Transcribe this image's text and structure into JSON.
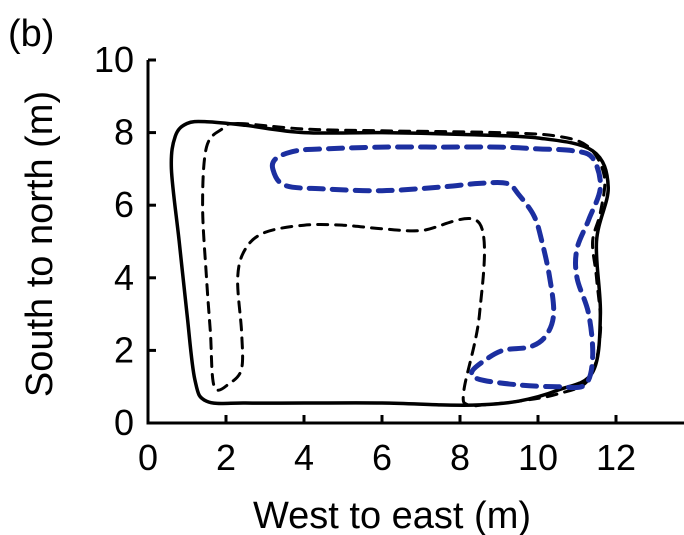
{
  "panel_label": "(b)",
  "chart_data": {
    "type": "line",
    "xlabel": "West to east (m)",
    "ylabel": "South to north (m)",
    "xlim": [
      0,
      14
    ],
    "ylim": [
      0,
      10
    ],
    "x_ticks": [
      0,
      2,
      4,
      6,
      8,
      10,
      12
    ],
    "y_ticks": [
      0,
      2,
      4,
      6,
      8,
      10
    ],
    "grid": false,
    "series": [
      {
        "style": "solid",
        "color": "#000000",
        "x": [
          1.5,
          2.5,
          4.0,
          6.0,
          8.0,
          10.0,
          11.4,
          11.8,
          11.5,
          11.6,
          11.4,
          10.5,
          9.5,
          8.5,
          7.5,
          6.0,
          4.0,
          2.5,
          1.5,
          1.2,
          1.0,
          0.8,
          0.6,
          0.7,
          1.0,
          1.5
        ],
        "y": [
          8.3,
          8.2,
          8.0,
          8.0,
          7.95,
          7.85,
          7.5,
          6.5,
          5.0,
          3.0,
          1.4,
          0.9,
          0.6,
          0.5,
          0.5,
          0.55,
          0.55,
          0.55,
          0.6,
          1.2,
          3.0,
          5.0,
          7.0,
          7.9,
          8.25,
          8.3
        ]
      },
      {
        "style": "dashed",
        "color": "#000000",
        "x": [
          2.3,
          1.9,
          1.5,
          1.4,
          1.5,
          1.6,
          1.7,
          2.1,
          2.4,
          2.4,
          2.3,
          2.5,
          3.0,
          4.0,
          5.0,
          6.0,
          7.0,
          8.5,
          8.5,
          8.1,
          8.2,
          8.6,
          9.5,
          10.5,
          11.3,
          11.6,
          11.5,
          11.4,
          11.6,
          11.7,
          11.3,
          10.5,
          9.0,
          6.0,
          4.0,
          2.3
        ],
        "y": [
          8.25,
          8.1,
          7.6,
          6.0,
          4.0,
          2.5,
          1.0,
          1.1,
          1.5,
          2.5,
          4.0,
          4.8,
          5.25,
          5.45,
          5.45,
          5.35,
          5.3,
          5.5,
          3.0,
          0.9,
          0.5,
          0.5,
          0.6,
          0.8,
          1.2,
          2.5,
          4.0,
          5.0,
          5.8,
          6.8,
          7.6,
          7.9,
          8.0,
          8.05,
          8.1,
          8.25
        ]
      },
      {
        "style": "dashed",
        "color": "#1c2fa0",
        "x": [
          3.2,
          3.5,
          4.5,
          6.0,
          7.5,
          8.5,
          9.2,
          9.5,
          9.9,
          10.1,
          10.3,
          10.4,
          10.2,
          9.8,
          9.1,
          8.6,
          8.3,
          8.5,
          9.5,
          10.5,
          11.2,
          11.4,
          11.3,
          11.0,
          11.0,
          11.3,
          11.6,
          11.4,
          10.9,
          10.0,
          9.0,
          7.5,
          6.0,
          4.5,
          3.8,
          3.3,
          3.2
        ],
        "y": [
          7.0,
          6.55,
          6.45,
          6.4,
          6.5,
          6.6,
          6.6,
          6.3,
          5.7,
          5.0,
          4.0,
          3.0,
          2.4,
          2.1,
          2.0,
          1.7,
          1.4,
          1.2,
          1.05,
          1.0,
          1.05,
          1.8,
          3.0,
          4.0,
          4.8,
          5.6,
          6.5,
          7.3,
          7.5,
          7.55,
          7.6,
          7.6,
          7.6,
          7.55,
          7.5,
          7.3,
          7.0
        ]
      }
    ]
  }
}
